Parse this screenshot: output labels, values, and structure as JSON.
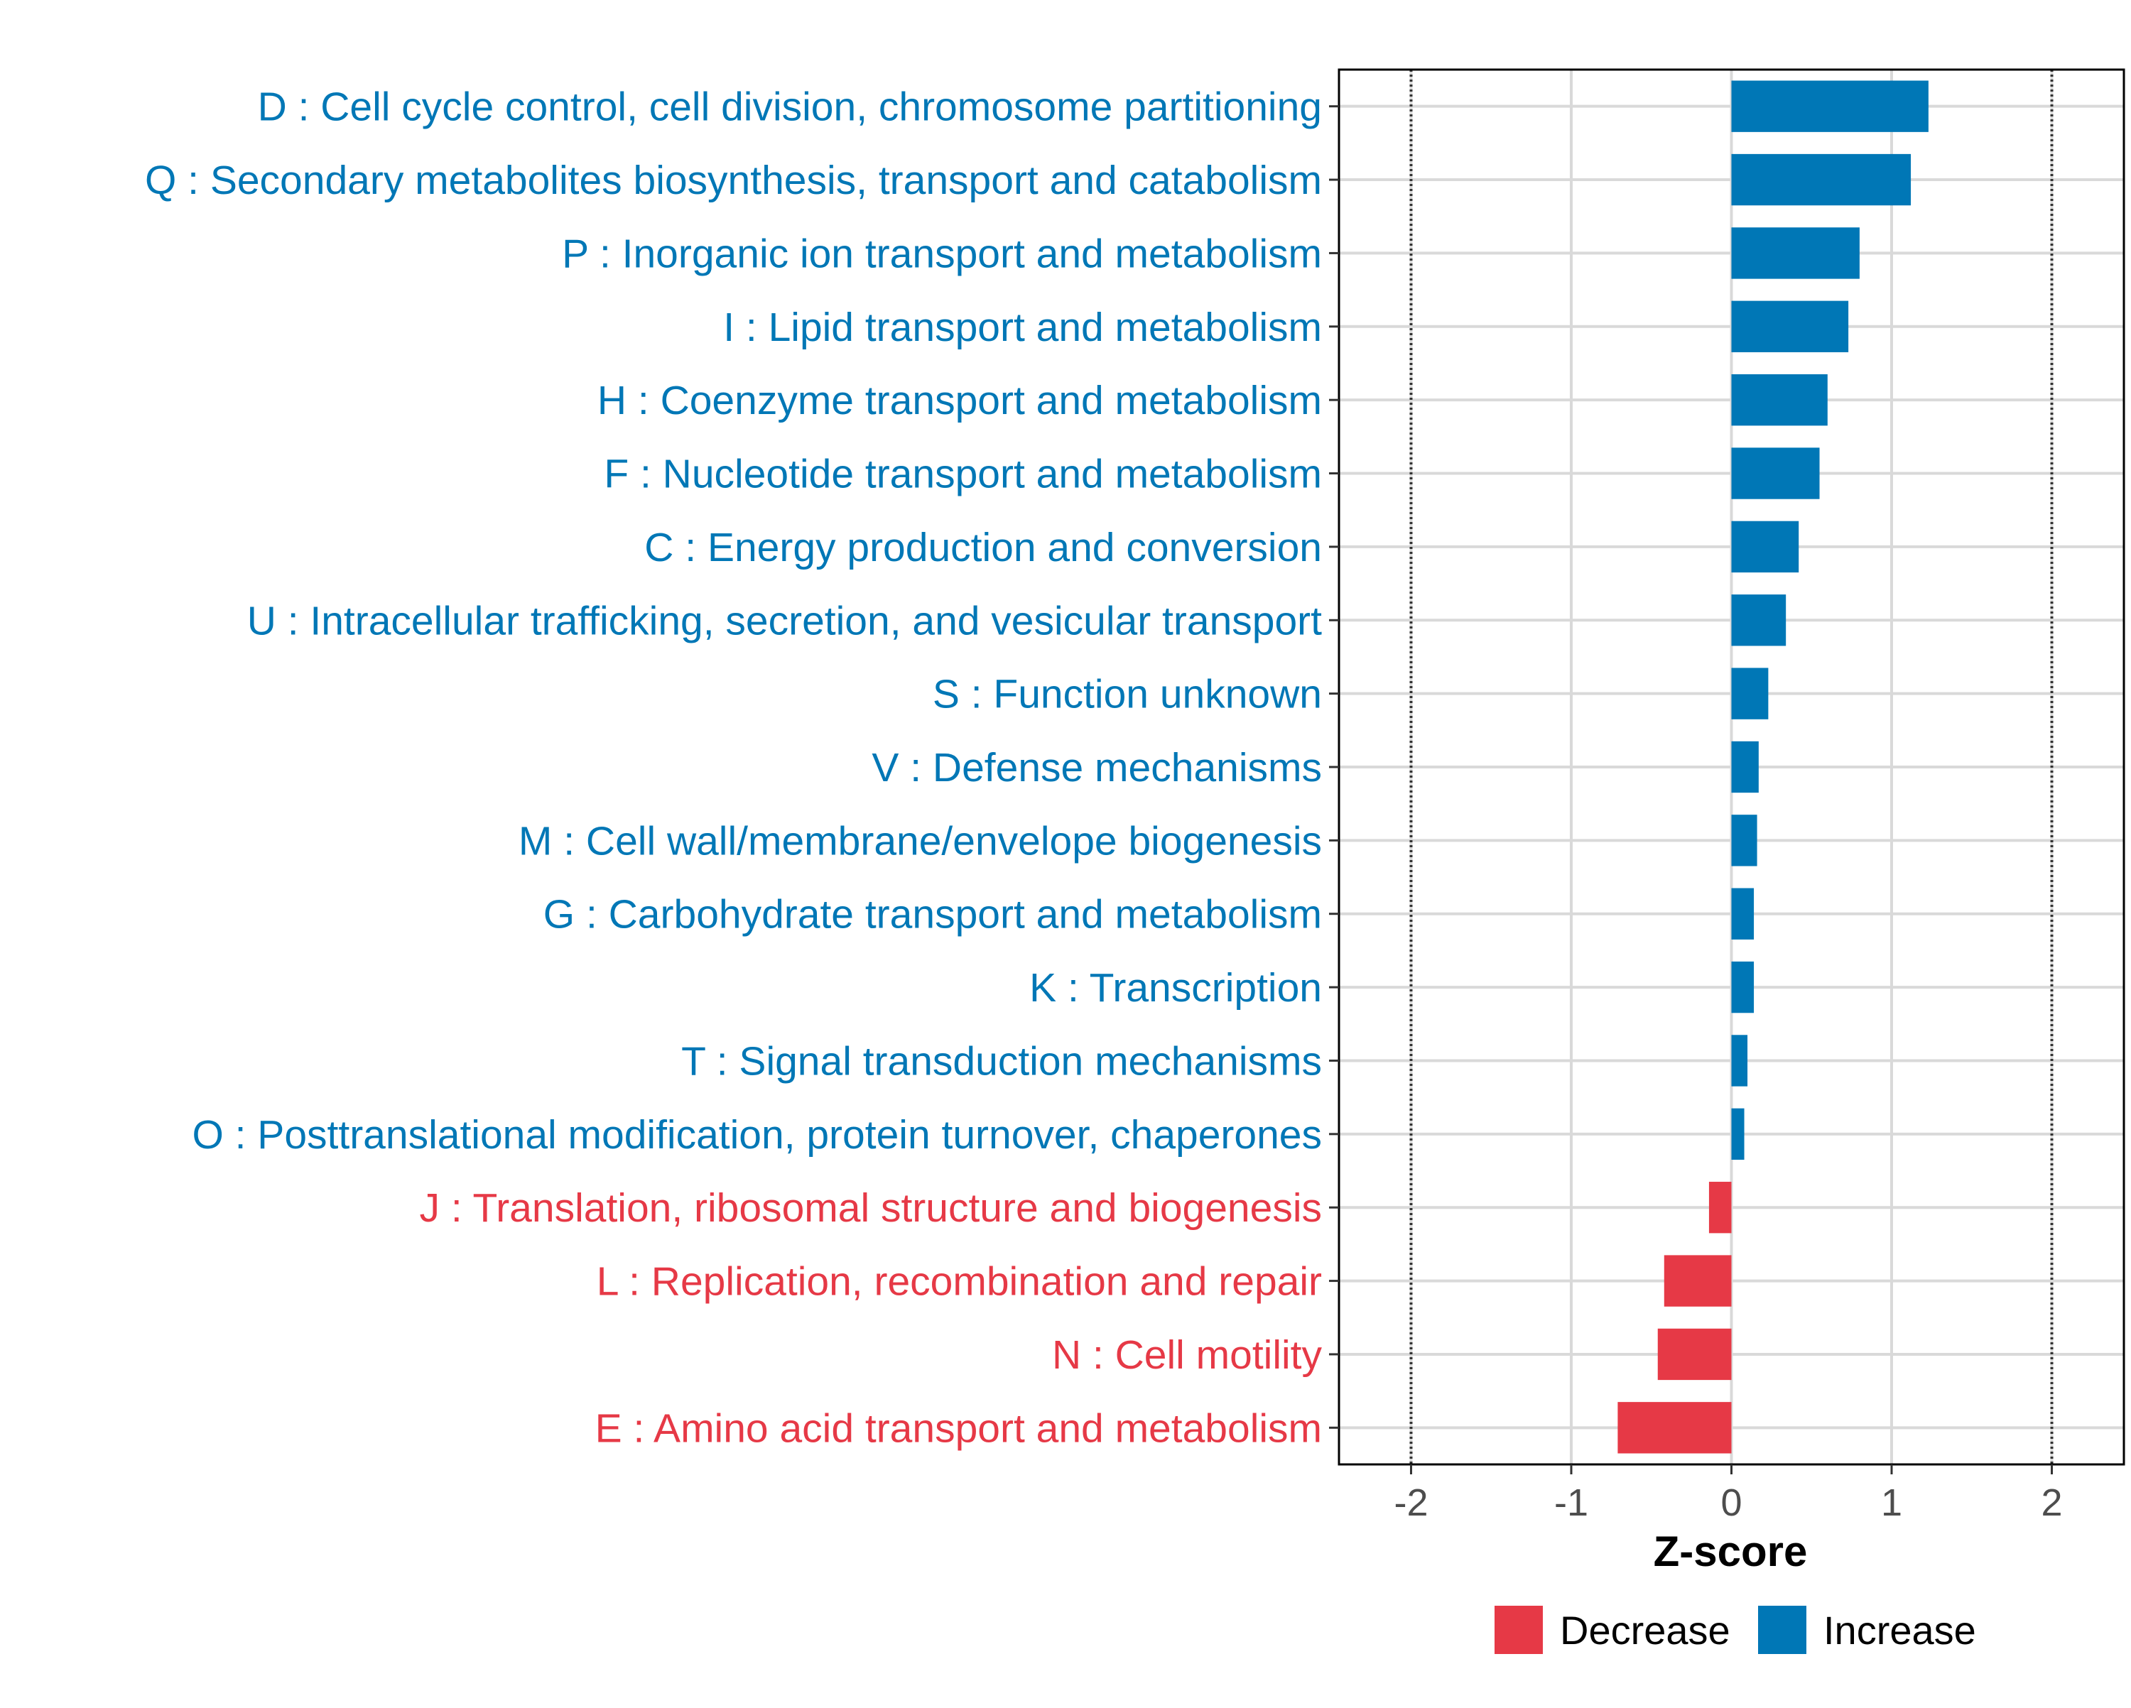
{
  "chart_data": {
    "type": "bar",
    "orientation": "horizontal",
    "xlabel": "Z-score",
    "ylabel": "",
    "xlim": [
      -2.45,
      2.45
    ],
    "xticks": [
      -2,
      -1,
      0,
      1,
      2
    ],
    "xtick_labels": [
      "-2",
      "-1",
      "0",
      "1",
      "2"
    ],
    "reference_lines": [
      -2,
      2
    ],
    "grid": true,
    "legend_position": "bottom",
    "legend": [
      {
        "label": "Decrease",
        "color": "#E63946"
      },
      {
        "label": "Increase",
        "color": "#0077B6"
      }
    ],
    "categories": [
      "D : Cell cycle control, cell division, chromosome partitioning",
      "Q : Secondary metabolites biosynthesis, transport and catabolism",
      "P : Inorganic ion transport and metabolism",
      "I : Lipid transport and metabolism",
      "H : Coenzyme transport and metabolism",
      "F : Nucleotide transport and metabolism",
      "C : Energy production and conversion",
      "U : Intracellular trafficking, secretion, and vesicular transport",
      "S : Function unknown",
      "V : Defense mechanisms",
      "M : Cell wall/membrane/envelope biogenesis",
      "G : Carbohydrate transport and metabolism",
      "K : Transcription",
      "T : Signal transduction mechanisms",
      "O : Posttranslational modification, protein turnover, chaperones",
      "J : Translation, ribosomal structure and biogenesis",
      "L : Replication, recombination and repair",
      "N : Cell motility",
      "E : Amino acid transport and metabolism"
    ],
    "values": [
      1.23,
      1.12,
      0.8,
      0.73,
      0.6,
      0.55,
      0.42,
      0.34,
      0.23,
      0.17,
      0.16,
      0.14,
      0.14,
      0.1,
      0.08,
      -0.14,
      -0.42,
      -0.46,
      -0.71
    ],
    "groups": [
      "Increase",
      "Increase",
      "Increase",
      "Increase",
      "Increase",
      "Increase",
      "Increase",
      "Increase",
      "Increase",
      "Increase",
      "Increase",
      "Increase",
      "Increase",
      "Increase",
      "Increase",
      "Decrease",
      "Decrease",
      "Decrease",
      "Decrease"
    ]
  }
}
